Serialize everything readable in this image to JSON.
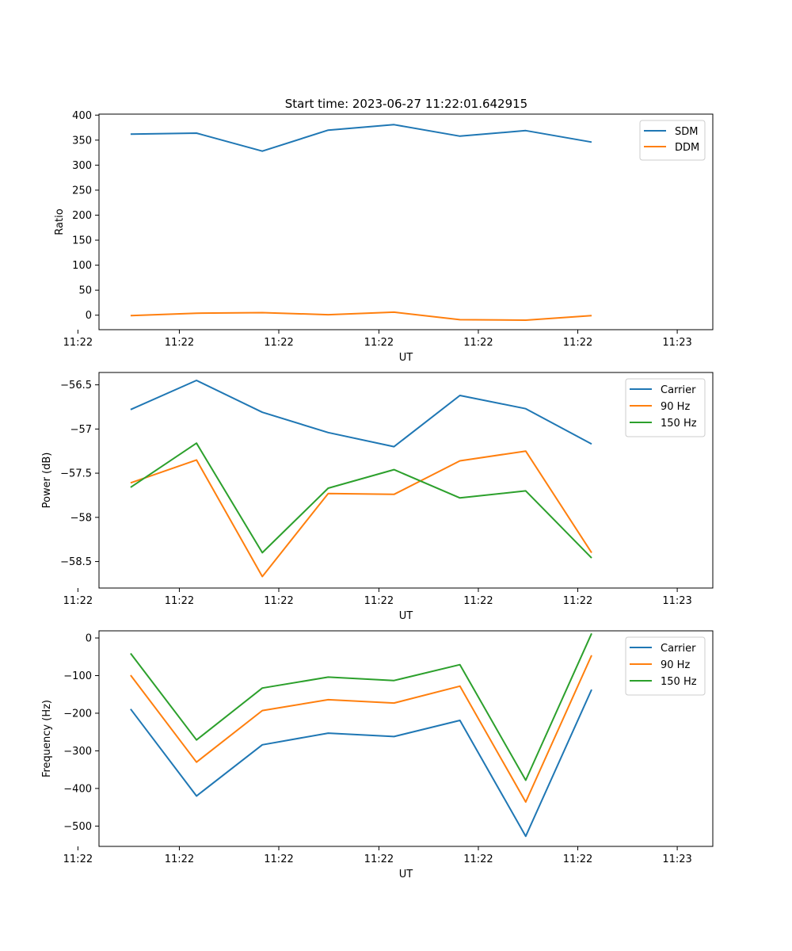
{
  "title": "Start time: 2023-06-27 11:22:01.642915",
  "chart_data": [
    {
      "type": "line",
      "xlabel": "UT",
      "ylabel": "Ratio",
      "x": [
        1,
        2,
        3,
        4,
        5,
        6,
        7,
        8
      ],
      "xlim": [
        0.52,
        9.84
      ],
      "xticks": [
        {
          "value": 0.2,
          "label": "11:22"
        },
        {
          "value": 1.74,
          "label": "11:22"
        },
        {
          "value": 3.25,
          "label": "11:22"
        },
        {
          "value": 4.77,
          "label": "11:22"
        },
        {
          "value": 6.28,
          "label": "11:22"
        },
        {
          "value": 7.79,
          "label": "11:22"
        },
        {
          "value": 9.3,
          "label": "11:23"
        }
      ],
      "ylim": [
        -29,
        402
      ],
      "yticks": [
        0,
        50,
        100,
        150,
        200,
        250,
        300,
        350,
        400
      ],
      "legend": "top-right",
      "series": [
        {
          "name": "SDM",
          "color": "#1f77b4",
          "values": [
            362,
            364,
            328,
            370,
            381,
            358,
            369,
            346
          ]
        },
        {
          "name": "DDM",
          "color": "#ff7f0e",
          "values": [
            -1,
            4,
            5,
            1,
            6,
            -9,
            -10,
            -1
          ]
        }
      ]
    },
    {
      "type": "line",
      "xlabel": "UT",
      "ylabel": "Power (dB)",
      "x": [
        1,
        2,
        3,
        4,
        5,
        6,
        7,
        8
      ],
      "xlim": [
        0.52,
        9.84
      ],
      "xticks": [
        {
          "value": 0.2,
          "label": "11:22"
        },
        {
          "value": 1.74,
          "label": "11:22"
        },
        {
          "value": 3.25,
          "label": "11:22"
        },
        {
          "value": 4.77,
          "label": "11:22"
        },
        {
          "value": 6.28,
          "label": "11:22"
        },
        {
          "value": 7.79,
          "label": "11:22"
        },
        {
          "value": 9.3,
          "label": "11:23"
        }
      ],
      "ylim": [
        -58.8,
        -56.36
      ],
      "yticks": [
        -58.5,
        -58.0,
        -57.5,
        -57.0,
        -56.5
      ],
      "legend": "top-right",
      "series": [
        {
          "name": "Carrier",
          "color": "#1f77b4",
          "values": [
            -56.78,
            -56.45,
            -56.81,
            -57.04,
            -57.2,
            -56.62,
            -56.77,
            -57.17
          ]
        },
        {
          "name": "90 Hz",
          "color": "#ff7f0e",
          "values": [
            -57.61,
            -57.35,
            -58.67,
            -57.73,
            -57.74,
            -57.36,
            -57.25,
            -58.4
          ]
        },
        {
          "name": "150 Hz",
          "color": "#2ca02c",
          "values": [
            -57.66,
            -57.16,
            -58.4,
            -57.67,
            -57.46,
            -57.78,
            -57.7,
            -58.46
          ]
        }
      ]
    },
    {
      "type": "line",
      "xlabel": "UT",
      "ylabel": "Frequency (Hz)",
      "x": [
        1,
        2,
        3,
        4,
        5,
        6,
        7,
        8
      ],
      "xlim": [
        0.52,
        9.84
      ],
      "xticks": [
        {
          "value": 0.2,
          "label": "11:22"
        },
        {
          "value": 1.74,
          "label": "11:22"
        },
        {
          "value": 3.25,
          "label": "11:22"
        },
        {
          "value": 4.77,
          "label": "11:22"
        },
        {
          "value": 6.28,
          "label": "11:22"
        },
        {
          "value": 7.79,
          "label": "11:22"
        },
        {
          "value": 9.3,
          "label": "11:23"
        }
      ],
      "ylim": [
        -554,
        19
      ],
      "yticks": [
        -500,
        -400,
        -300,
        -200,
        -100,
        0
      ],
      "legend": "top-right",
      "series": [
        {
          "name": "Carrier",
          "color": "#1f77b4",
          "values": [
            -189,
            -420,
            -284,
            -253,
            -262,
            -219,
            -527,
            -137
          ]
        },
        {
          "name": "90 Hz",
          "color": "#ff7f0e",
          "values": [
            -99,
            -330,
            -193,
            -164,
            -173,
            -128,
            -436,
            -46
          ]
        },
        {
          "name": "150 Hz",
          "color": "#2ca02c",
          "values": [
            -41,
            -271,
            -133,
            -104,
            -113,
            -71,
            -378,
            12
          ]
        }
      ]
    }
  ]
}
